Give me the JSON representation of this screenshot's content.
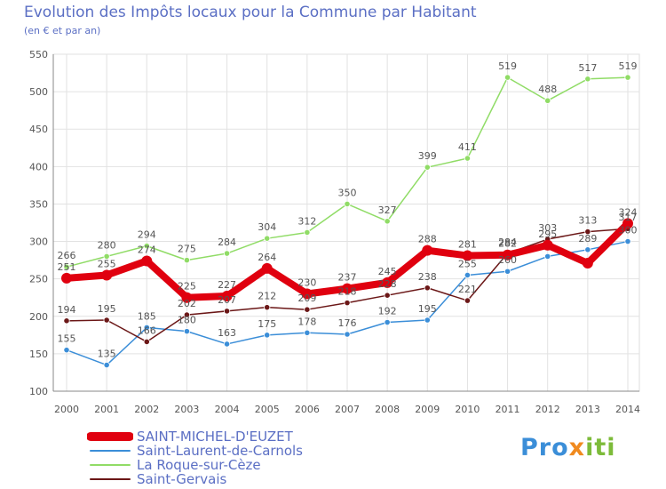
{
  "title": "Evolution des Impôts locaux pour la Commune par Habitant",
  "subtitle": "(en € et par an)",
  "logo": {
    "p1": "Pro",
    "p2": "x",
    "p3": "iti"
  },
  "chart_data": {
    "type": "line",
    "title": "Evolution des Impôts locaux pour la Commune par Habitant",
    "subtitle": "(en € et par an)",
    "xlabel": "",
    "ylabel": "",
    "ylim": [
      100,
      550
    ],
    "yticks": [
      100,
      150,
      200,
      250,
      300,
      350,
      400,
      450,
      500,
      550
    ],
    "grid": true,
    "x": [
      "2000",
      "2001",
      "2002",
      "2003",
      "2004",
      "2005",
      "2006",
      "2007",
      "2008",
      "2009",
      "2010",
      "2011",
      "2012",
      "2013",
      "2014"
    ],
    "series": [
      {
        "name": "SAINT-MICHEL-D'EUZET",
        "color": "#e0000f",
        "values": [
          251,
          255,
          274,
          225,
          227,
          264,
          230,
          237,
          245,
          288,
          281,
          282,
          295,
          271,
          324
        ],
        "labels": [
          "251",
          "255",
          "274",
          "225",
          "227",
          "264",
          "230",
          "237",
          "245",
          "288",
          "281",
          "282",
          "295",
          "",
          "324"
        ]
      },
      {
        "name": "Saint-Laurent-de-Carnols",
        "color": "#3b8ed8",
        "values": [
          155,
          135,
          185,
          180,
          163,
          175,
          178,
          176,
          192,
          195,
          255,
          260,
          280,
          289,
          300
        ],
        "labels": [
          "155",
          "135",
          "185",
          "180",
          "163",
          "175",
          "178",
          "176",
          "192",
          "195",
          "255",
          "260",
          "",
          "289",
          "300"
        ]
      },
      {
        "name": "La Roque-sur-Cèze",
        "color": "#90dc66",
        "values": [
          266,
          280,
          294,
          275,
          284,
          304,
          312,
          350,
          327,
          399,
          411,
          519,
          488,
          517,
          519
        ],
        "labels": [
          "266",
          "280",
          "294",
          "275",
          "284",
          "304",
          "312",
          "350",
          "327",
          "399",
          "411",
          "519",
          "488",
          "517",
          "519"
        ]
      },
      {
        "name": "Saint-Gervais",
        "color": "#6b1717",
        "values": [
          194,
          195,
          166,
          202,
          207,
          212,
          209,
          218,
          228,
          238,
          221,
          284,
          303,
          313,
          317
        ],
        "labels": [
          "194",
          "195",
          "166",
          "202",
          "207",
          "212",
          "209",
          "218",
          "228",
          "238",
          "221",
          "284",
          "303",
          "313",
          "317"
        ]
      }
    ]
  }
}
